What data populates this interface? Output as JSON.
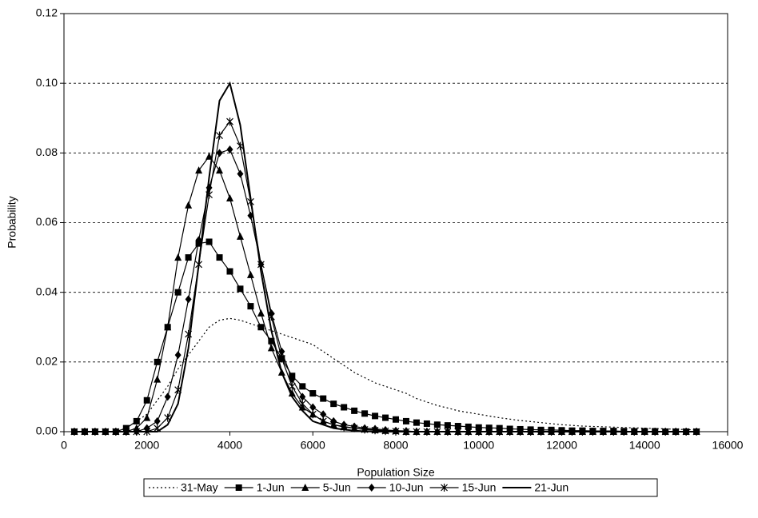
{
  "chart_data": {
    "type": "line",
    "x_label": "Population Size",
    "y_label": "Probability",
    "xlim": [
      0,
      16000
    ],
    "xticks": [
      0,
      2000,
      4000,
      6000,
      8000,
      10000,
      12000,
      14000,
      16000
    ],
    "ylim": [
      0,
      0.12
    ],
    "yticks": [
      {
        "value": 0,
        "label": "0.00"
      },
      {
        "value": 0.02,
        "label": "0.02"
      },
      {
        "value": 0.04,
        "label": "0.04"
      },
      {
        "value": 0.06,
        "label": "0.06"
      },
      {
        "value": 0.08,
        "label": "0.08"
      },
      {
        "value": 0.1,
        "label": "0.10"
      },
      {
        "value": 0.12,
        "label": "0.12"
      }
    ],
    "grid": true,
    "legend": "bottom",
    "x": [
      250,
      500,
      750,
      1000,
      1250,
      1500,
      1750,
      2000,
      2250,
      2500,
      2750,
      3000,
      3250,
      3500,
      3750,
      4000,
      4250,
      4500,
      4750,
      5000,
      5250,
      5500,
      5750,
      6000,
      6250,
      6500,
      6750,
      7000,
      7250,
      7500,
      7750,
      8000,
      8250,
      8500,
      8750,
      9000,
      9250,
      9500,
      9750,
      10000,
      10250,
      10500,
      10750,
      11000,
      11250,
      11500,
      11750,
      12000,
      12250,
      12500,
      12750,
      13000,
      13250,
      13500,
      13750,
      14000,
      14250,
      14500,
      14750,
      15000,
      15250
    ],
    "series": [
      {
        "name": "31-May",
        "color": "#000000",
        "dash": "dotted",
        "marker": "none",
        "values": [
          0,
          0,
          0,
          0,
          0,
          0.001,
          0.003,
          0.005,
          0.009,
          0.013,
          0.018,
          0.022,
          0.026,
          0.03,
          0.032,
          0.0325,
          0.032,
          0.031,
          0.03,
          0.029,
          0.028,
          0.027,
          0.026,
          0.025,
          0.023,
          0.021,
          0.019,
          0.017,
          0.0155,
          0.014,
          0.013,
          0.012,
          0.011,
          0.0095,
          0.0085,
          0.0075,
          0.0068,
          0.006,
          0.0055,
          0.005,
          0.0045,
          0.004,
          0.0036,
          0.0032,
          0.0029,
          0.0026,
          0.0023,
          0.002,
          0.0018,
          0.0016,
          0.0015,
          0.0014,
          0.0013,
          0.0012,
          0.0011,
          0.001,
          0.0009,
          0.0008,
          0.0007,
          0.0006,
          0.0005
        ]
      },
      {
        "name": "1-Jun",
        "color": "#000000",
        "dash": "solid",
        "marker": "square",
        "values": [
          0,
          0,
          0,
          0,
          0,
          0.001,
          0.003,
          0.009,
          0.02,
          0.03,
          0.04,
          0.05,
          0.054,
          0.0545,
          0.05,
          0.046,
          0.041,
          0.036,
          0.03,
          0.026,
          0.021,
          0.016,
          0.013,
          0.011,
          0.0095,
          0.008,
          0.007,
          0.006,
          0.0052,
          0.0045,
          0.004,
          0.0035,
          0.003,
          0.0026,
          0.0023,
          0.002,
          0.0018,
          0.0016,
          0.0014,
          0.0012,
          0.0011,
          0.001,
          0.0008,
          0.0007,
          0.0006,
          0.0005,
          0.0005,
          0.0004,
          0.0003,
          0.0003,
          0.0002,
          0.0002,
          0.0002,
          0.0001,
          0.0001,
          0.0001,
          0.0001,
          0,
          0,
          0,
          0
        ]
      },
      {
        "name": "5-Jun",
        "color": "#000000",
        "dash": "solid",
        "marker": "triangle",
        "values": [
          0,
          0,
          0,
          0,
          0,
          0,
          0.001,
          0.004,
          0.015,
          0.03,
          0.05,
          0.065,
          0.075,
          0.079,
          0.075,
          0.067,
          0.056,
          0.045,
          0.034,
          0.024,
          0.017,
          0.011,
          0.007,
          0.005,
          0.003,
          0.002,
          0.0015,
          0.001,
          0.0007,
          0.0005,
          0.0003,
          0.0002,
          0,
          0,
          0,
          0,
          0,
          0,
          0,
          0,
          0,
          0,
          0,
          0,
          0,
          0,
          0,
          0,
          0,
          0,
          0,
          0,
          0,
          0,
          0,
          0,
          0,
          0,
          0,
          0,
          0
        ]
      },
      {
        "name": "10-Jun",
        "color": "#000000",
        "dash": "solid",
        "marker": "diamond",
        "values": [
          0,
          0,
          0,
          0,
          0,
          0,
          0,
          0.001,
          0.003,
          0.01,
          0.022,
          0.038,
          0.055,
          0.07,
          0.08,
          0.081,
          0.074,
          0.062,
          0.048,
          0.034,
          0.023,
          0.015,
          0.01,
          0.007,
          0.005,
          0.003,
          0.002,
          0.0015,
          0.001,
          0.0008,
          0.0005,
          0.0003,
          0.0002,
          0,
          0,
          0,
          0,
          0,
          0,
          0,
          0,
          0,
          0,
          0,
          0,
          0,
          0,
          0,
          0,
          0,
          0,
          0,
          0,
          0,
          0,
          0,
          0,
          0,
          0,
          0,
          0
        ]
      },
      {
        "name": "15-Jun",
        "color": "#000000",
        "dash": "solid",
        "marker": "star",
        "values": [
          0,
          0,
          0,
          0,
          0,
          0,
          0,
          0,
          0.001,
          0.004,
          0.012,
          0.028,
          0.048,
          0.068,
          0.085,
          0.089,
          0.082,
          0.066,
          0.048,
          0.033,
          0.021,
          0.013,
          0.008,
          0.005,
          0.003,
          0.002,
          0.0013,
          0.001,
          0.0006,
          0.0004,
          0.0002,
          0.0001,
          0,
          0,
          0,
          0,
          0,
          0,
          0,
          0,
          0,
          0,
          0,
          0,
          0,
          0,
          0,
          0,
          0,
          0,
          0,
          0,
          0,
          0,
          0,
          0,
          0,
          0,
          0,
          0,
          0
        ]
      },
      {
        "name": "21-Jun",
        "color": "#000000",
        "dash": "solid",
        "marker": "none",
        "values": [
          0,
          0,
          0,
          0,
          0,
          0,
          0,
          0,
          0,
          0.002,
          0.008,
          0.024,
          0.048,
          0.073,
          0.095,
          0.1,
          0.088,
          0.067,
          0.046,
          0.029,
          0.017,
          0.01,
          0.006,
          0.003,
          0.002,
          0.001,
          0.0006,
          0.0003,
          0.0001,
          0,
          0,
          0,
          0,
          0,
          0,
          0,
          0,
          0,
          0,
          0,
          0,
          0,
          0,
          0,
          0,
          0,
          0,
          0,
          0,
          0,
          0,
          0,
          0,
          0,
          0,
          0,
          0,
          0,
          0,
          0,
          0
        ]
      }
    ]
  }
}
